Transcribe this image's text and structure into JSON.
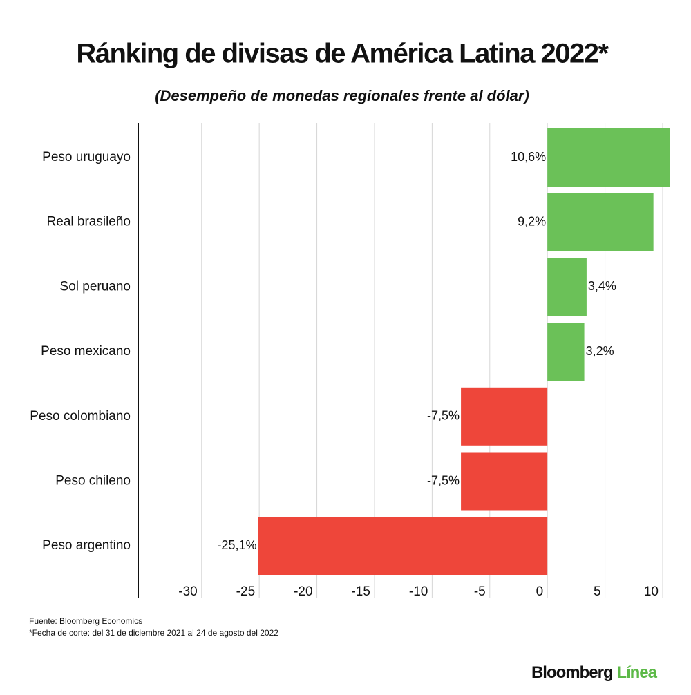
{
  "chart_data": {
    "type": "hbar",
    "title": "Ránking de divisas de América Latina 2022*",
    "subtitle": "(Desempeño de monedas regionales frente al dólar)",
    "categories": [
      "Peso uruguayo",
      "Real brasileño",
      "Sol peruano",
      "Peso mexicano",
      "Peso colombiano",
      "Peso chileno",
      "Peso argentino"
    ],
    "values": [
      10.6,
      9.2,
      3.4,
      3.2,
      -7.5,
      -7.5,
      -25.1
    ],
    "value_labels": [
      "10,6%",
      "9,2%",
      "3,4%",
      "3,2%",
      "-7,5%",
      "-7,5%",
      "-25,1%"
    ],
    "colors": [
      "#6bc158",
      "#6bc158",
      "#6bc158",
      "#6bc158",
      "#ee463a",
      "#ee463a",
      "#ee463a"
    ],
    "xlim": [
      -35.5,
      10
    ],
    "xticks": [
      -30,
      -25,
      -20,
      -15,
      -10,
      -5,
      0,
      5,
      10
    ],
    "grid": true,
    "source": "Fuente: Bloomberg Economics",
    "note": "*Fecha de corte: del 31 de diciembre 2021 al 24 de agosto del 2022",
    "brand": "Bloomberg",
    "brand_accent": "Línea"
  }
}
